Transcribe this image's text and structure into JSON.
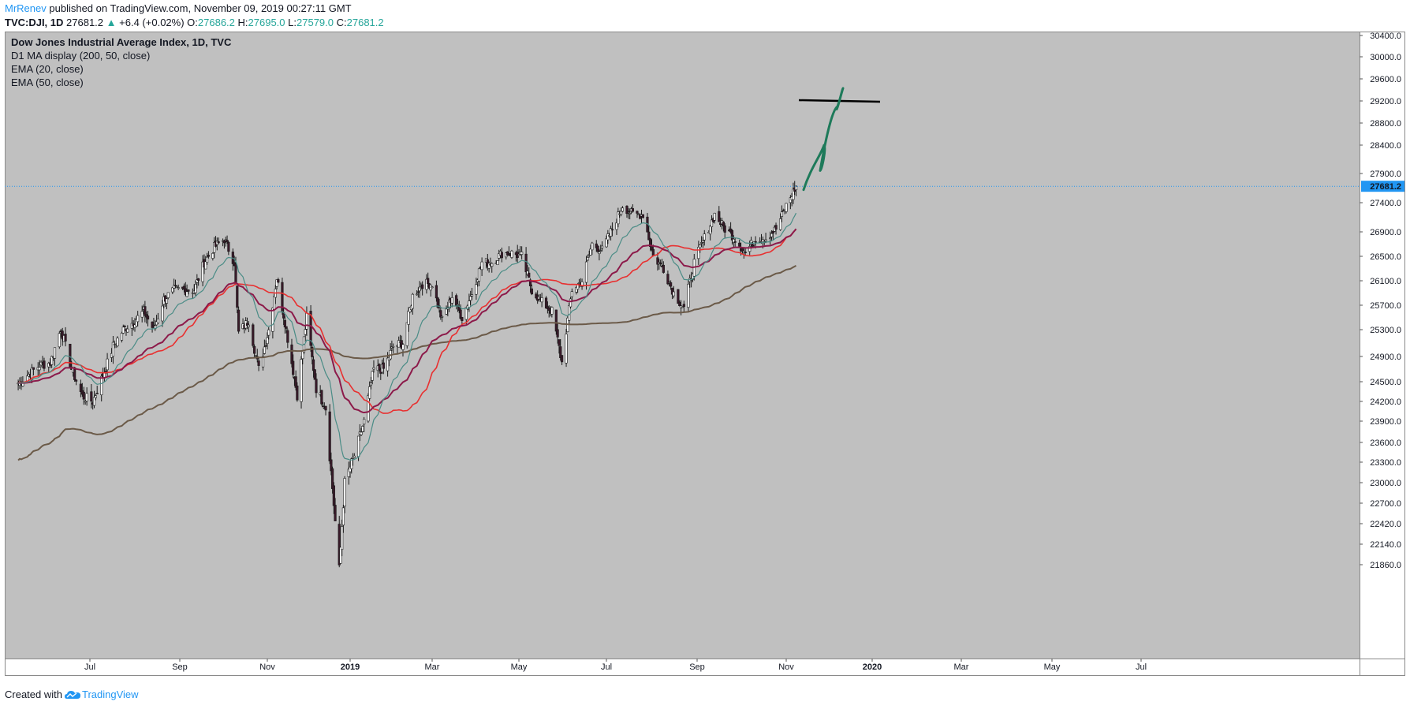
{
  "header": {
    "author": "MrRenev",
    "published_text": "published on TradingView.com, November 09, 2019 00:27:11 GMT",
    "symbol": "TVC:DJI, 1D",
    "last": "27681.2",
    "change": "+6.4 (+0.02%)",
    "o_label": "O:",
    "o_value": "27686.2",
    "h_label": "H:",
    "h_value": "27695.0",
    "l_label": "L:",
    "l_value": "27579.0",
    "c_label": "C:",
    "c_value": "27681.2"
  },
  "footer": {
    "created_with": "Created with",
    "brand": "TradingView"
  },
  "colors": {
    "pane_background": "#c0c0c0",
    "candle_up": "#ffffff",
    "candle_down": "#3a1a2a",
    "ema20": "#4a8c86",
    "ema50": "#8c1a4a",
    "ma50": "#e83030",
    "ma200": "#6b5a48",
    "drawing_green": "#1e7a5a",
    "last_price_badge": "#2196f3"
  },
  "chart_data": {
    "type": "candlestick",
    "title": "Dow Jones Industrial Average Index, 1D, TVC",
    "indicators": [
      "D1 MA display (200, 50, close)",
      "EMA (20, close)",
      "EMA (50, close)"
    ],
    "y_ticks": [
      "30400.0",
      "30000.0",
      "29600.0",
      "29200.0",
      "28800.0",
      "28400.0",
      "27900.0",
      "27400.0",
      "26900.0",
      "26500.0",
      "26100.0",
      "25700.0",
      "25300.0",
      "24900.0",
      "24500.0",
      "24200.0",
      "23900.0",
      "23600.0",
      "23300.0",
      "23000.0",
      "22700.0",
      "22420.0",
      "22140.0",
      "21860.0"
    ],
    "x_ticks": [
      "Jul",
      "Sep",
      "Nov",
      "2019",
      "Mar",
      "May",
      "Jul",
      "Sep",
      "Nov",
      "2020",
      "Mar",
      "May",
      "Jul"
    ],
    "ylim": [
      21600,
      30600
    ],
    "last_price_label": "27681.2",
    "last_price": 27681.2,
    "grid": false,
    "closes": [
      {
        "d": "2018-05-15",
        "v": 24480
      },
      {
        "d": "2018-05-29",
        "v": 24760
      },
      {
        "d": "2018-06-05",
        "v": 24800
      },
      {
        "d": "2018-06-12",
        "v": 25320
      },
      {
        "d": "2018-06-19",
        "v": 24700
      },
      {
        "d": "2018-06-26",
        "v": 24280
      },
      {
        "d": "2018-07-03",
        "v": 24200
      },
      {
        "d": "2018-07-10",
        "v": 24600
      },
      {
        "d": "2018-07-17",
        "v": 25050
      },
      {
        "d": "2018-07-24",
        "v": 25300
      },
      {
        "d": "2018-07-31",
        "v": 25430
      },
      {
        "d": "2018-08-07",
        "v": 25600
      },
      {
        "d": "2018-08-14",
        "v": 25300
      },
      {
        "d": "2018-08-21",
        "v": 25800
      },
      {
        "d": "2018-08-28",
        "v": 25950
      },
      {
        "d": "2018-09-04",
        "v": 25950
      },
      {
        "d": "2018-09-11",
        "v": 25950
      },
      {
        "d": "2018-09-18",
        "v": 26400
      },
      {
        "d": "2018-09-25",
        "v": 26650
      },
      {
        "d": "2018-10-02",
        "v": 26780
      },
      {
        "d": "2018-10-09",
        "v": 26400
      },
      {
        "d": "2018-10-12",
        "v": 25250
      },
      {
        "d": "2018-10-19",
        "v": 25450
      },
      {
        "d": "2018-10-26",
        "v": 24700
      },
      {
        "d": "2018-11-02",
        "v": 25300
      },
      {
        "d": "2018-11-08",
        "v": 26150
      },
      {
        "d": "2018-11-15",
        "v": 25300
      },
      {
        "d": "2018-11-23",
        "v": 24300
      },
      {
        "d": "2018-11-30",
        "v": 25500
      },
      {
        "d": "2018-12-07",
        "v": 24400
      },
      {
        "d": "2018-12-14",
        "v": 24100
      },
      {
        "d": "2018-12-21",
        "v": 22450
      },
      {
        "d": "2018-12-24",
        "v": 21790
      },
      {
        "d": "2018-12-28",
        "v": 23000
      },
      {
        "d": "2019-01-04",
        "v": 23400
      },
      {
        "d": "2019-01-11",
        "v": 23900
      },
      {
        "d": "2019-01-18",
        "v": 24700
      },
      {
        "d": "2019-01-25",
        "v": 24700
      },
      {
        "d": "2019-02-01",
        "v": 25050
      },
      {
        "d": "2019-02-08",
        "v": 25100
      },
      {
        "d": "2019-02-15",
        "v": 25850
      },
      {
        "d": "2019-02-22",
        "v": 26050
      },
      {
        "d": "2019-03-01",
        "v": 26050
      },
      {
        "d": "2019-03-08",
        "v": 25450
      },
      {
        "d": "2019-03-15",
        "v": 25850
      },
      {
        "d": "2019-03-22",
        "v": 25500
      },
      {
        "d": "2019-03-29",
        "v": 25900
      },
      {
        "d": "2019-04-05",
        "v": 26400
      },
      {
        "d": "2019-04-12",
        "v": 26400
      },
      {
        "d": "2019-04-19",
        "v": 26550
      },
      {
        "d": "2019-04-26",
        "v": 26550
      },
      {
        "d": "2019-05-03",
        "v": 26500
      },
      {
        "d": "2019-05-10",
        "v": 25950
      },
      {
        "d": "2019-05-17",
        "v": 25750
      },
      {
        "d": "2019-05-24",
        "v": 25600
      },
      {
        "d": "2019-05-31",
        "v": 24800
      },
      {
        "d": "2019-06-07",
        "v": 25950
      },
      {
        "d": "2019-06-14",
        "v": 26100
      },
      {
        "d": "2019-06-21",
        "v": 26700
      },
      {
        "d": "2019-06-28",
        "v": 26600
      },
      {
        "d": "2019-07-05",
        "v": 26950
      },
      {
        "d": "2019-07-12",
        "v": 27350
      },
      {
        "d": "2019-07-19",
        "v": 27200
      },
      {
        "d": "2019-07-26",
        "v": 27200
      },
      {
        "d": "2019-08-02",
        "v": 26500
      },
      {
        "d": "2019-08-09",
        "v": 26300
      },
      {
        "d": "2019-08-16",
        "v": 25900
      },
      {
        "d": "2019-08-23",
        "v": 25650
      },
      {
        "d": "2019-08-30",
        "v": 26400
      },
      {
        "d": "2019-09-06",
        "v": 26800
      },
      {
        "d": "2019-09-13",
        "v": 27200
      },
      {
        "d": "2019-09-20",
        "v": 26950
      },
      {
        "d": "2019-09-27",
        "v": 26800
      },
      {
        "d": "2019-10-04",
        "v": 26550
      },
      {
        "d": "2019-10-11",
        "v": 26800
      },
      {
        "d": "2019-10-18",
        "v": 26800
      },
      {
        "d": "2019-10-25",
        "v": 26950
      },
      {
        "d": "2019-11-01",
        "v": 27350
      },
      {
        "d": "2019-11-08",
        "v": 27681
      }
    ]
  },
  "annotations": {
    "horizontal_line_price": 29200,
    "projection_arrow": "green hand-drawn upward line"
  }
}
